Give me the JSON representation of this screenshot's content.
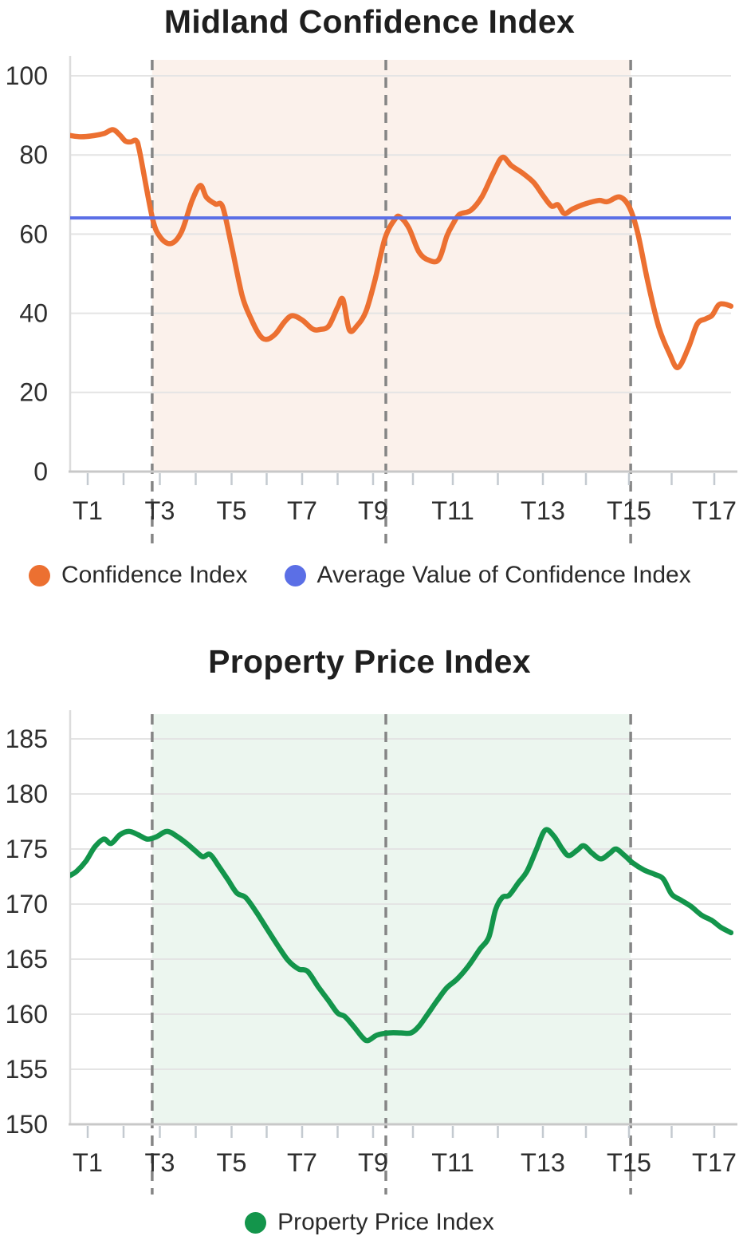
{
  "chart_data": [
    {
      "type": "line",
      "title": "Midland Confidence Index",
      "xlabel": "",
      "ylabel": "",
      "ylim": [
        0,
        104
      ],
      "y_ticks": [
        0,
        20,
        40,
        60,
        80,
        100
      ],
      "x_range": [
        0.51,
        17.39
      ],
      "x_ticks": {
        "labels": [
          "T1",
          "T3",
          "T5",
          "T7",
          "T9",
          "T11",
          "T13",
          "T15",
          "T17"
        ],
        "positions": [
          1,
          3,
          5,
          7,
          9,
          11,
          13,
          15,
          17
        ]
      },
      "grid": "horizontal",
      "legend_position": "bottom",
      "dashed_vlines_x": [
        2.79,
        9.32,
        15.04
      ],
      "shaded_region": {
        "from": 2.79,
        "to": 15.04,
        "color": "#FBF1EB"
      },
      "series": [
        {
          "name": "Confidence Index",
          "color": "#EC7031",
          "kind": "spline",
          "points": [
            [
              0.51,
              84.9
            ],
            [
              0.8,
              84.6
            ],
            [
              1.1,
              84.8
            ],
            [
              1.45,
              85.4
            ],
            [
              1.7,
              86.4
            ],
            [
              1.9,
              85.0
            ],
            [
              2.05,
              83.5
            ],
            [
              2.2,
              83.3
            ],
            [
              2.35,
              83.6
            ],
            [
              2.45,
              80.5
            ],
            [
              2.79,
              64.3
            ],
            [
              3.0,
              59.4
            ],
            [
              3.3,
              57.6
            ],
            [
              3.6,
              60.5
            ],
            [
              3.9,
              68.5
            ],
            [
              4.13,
              72.3
            ],
            [
              4.3,
              69.3
            ],
            [
              4.55,
              67.6
            ],
            [
              4.75,
              66.9
            ],
            [
              5.0,
              57.0
            ],
            [
              5.3,
              44.5
            ],
            [
              5.55,
              38.7
            ],
            [
              5.8,
              34.5
            ],
            [
              6.0,
              33.4
            ],
            [
              6.25,
              34.8
            ],
            [
              6.5,
              37.8
            ],
            [
              6.72,
              39.4
            ],
            [
              7.0,
              38.3
            ],
            [
              7.3,
              36.0
            ],
            [
              7.5,
              35.9
            ],
            [
              7.75,
              36.8
            ],
            [
              8.0,
              41.5
            ],
            [
              8.15,
              43.5
            ],
            [
              8.33,
              35.8
            ],
            [
              8.55,
              36.9
            ],
            [
              8.8,
              40.5
            ],
            [
              9.05,
              48.5
            ],
            [
              9.3,
              59.0
            ],
            [
              9.55,
              63.8
            ],
            [
              9.68,
              64.3
            ],
            [
              9.9,
              61.5
            ],
            [
              10.15,
              55.5
            ],
            [
              10.4,
              53.4
            ],
            [
              10.65,
              53.6
            ],
            [
              10.85,
              59.5
            ],
            [
              11.0,
              62.5
            ],
            [
              11.15,
              65.0
            ],
            [
              11.4,
              66.0
            ],
            [
              11.65,
              69.5
            ],
            [
              11.9,
              75.5
            ],
            [
              12.1,
              79.4
            ],
            [
              12.3,
              77.3
            ],
            [
              12.55,
              75.4
            ],
            [
              12.8,
              73.0
            ],
            [
              13.0,
              69.8
            ],
            [
              13.2,
              67.1
            ],
            [
              13.35,
              67.4
            ],
            [
              13.5,
              65.2
            ],
            [
              13.7,
              66.4
            ],
            [
              14.0,
              67.7
            ],
            [
              14.3,
              68.5
            ],
            [
              14.5,
              68.2
            ],
            [
              14.78,
              69.4
            ],
            [
              15.0,
              67.0
            ],
            [
              15.2,
              60.5
            ],
            [
              15.45,
              47.5
            ],
            [
              15.7,
              36.5
            ],
            [
              15.95,
              29.8
            ],
            [
              16.15,
              26.3
            ],
            [
              16.4,
              31.5
            ],
            [
              16.6,
              37.3
            ],
            [
              16.8,
              38.6
            ],
            [
              16.95,
              39.5
            ],
            [
              17.1,
              42.1
            ],
            [
              17.25,
              42.3
            ],
            [
              17.39,
              41.8
            ]
          ]
        },
        {
          "name": "Average Value of Confidence Index",
          "color": "#5B6FE6",
          "kind": "average-line",
          "value": 64.1
        }
      ]
    },
    {
      "type": "line",
      "title": "Property Price Index",
      "xlabel": "",
      "ylabel": "",
      "ylim": [
        150,
        186.5
      ],
      "y_ticks": [
        150,
        155,
        160,
        165,
        170,
        175,
        180,
        185
      ],
      "x_range": [
        0.51,
        17.39
      ],
      "x_ticks": {
        "labels": [
          "T1",
          "T3",
          "T5",
          "T7",
          "T9",
          "T11",
          "T13",
          "T15",
          "T17"
        ],
        "positions": [
          1,
          3,
          5,
          7,
          9,
          11,
          13,
          15,
          17
        ]
      },
      "grid": "horizontal",
      "legend_position": "bottom",
      "dashed_vlines_x": [
        2.79,
        9.32,
        15.04
      ],
      "shaded_region": {
        "from": 2.79,
        "to": 15.04,
        "color": "#ECF6EF"
      },
      "series": [
        {
          "name": "Property Price Index",
          "color": "#13954B",
          "kind": "spline",
          "points": [
            [
              0.51,
              172.6
            ],
            [
              0.7,
              173.0
            ],
            [
              0.95,
              173.9
            ],
            [
              1.2,
              175.2
            ],
            [
              1.45,
              175.9
            ],
            [
              1.65,
              175.5
            ],
            [
              1.9,
              176.3
            ],
            [
              2.15,
              176.6
            ],
            [
              2.4,
              176.3
            ],
            [
              2.65,
              175.9
            ],
            [
              2.9,
              176.1
            ],
            [
              3.2,
              176.6
            ],
            [
              3.5,
              176.1
            ],
            [
              3.75,
              175.5
            ],
            [
              4.0,
              174.8
            ],
            [
              4.2,
              174.3
            ],
            [
              4.4,
              174.5
            ],
            [
              4.65,
              173.4
            ],
            [
              4.9,
              172.2
            ],
            [
              5.15,
              171.0
            ],
            [
              5.4,
              170.6
            ],
            [
              5.7,
              169.3
            ],
            [
              6.0,
              167.8
            ],
            [
              6.3,
              166.3
            ],
            [
              6.6,
              164.9
            ],
            [
              6.9,
              164.1
            ],
            [
              7.15,
              163.9
            ],
            [
              7.45,
              162.5
            ],
            [
              7.75,
              161.2
            ],
            [
              8.0,
              160.1
            ],
            [
              8.2,
              159.8
            ],
            [
              8.45,
              158.9
            ],
            [
              8.7,
              157.9
            ],
            [
              8.85,
              157.6
            ],
            [
              9.1,
              158.1
            ],
            [
              9.4,
              158.3
            ],
            [
              9.7,
              158.3
            ],
            [
              9.95,
              158.3
            ],
            [
              10.15,
              158.9
            ],
            [
              10.35,
              159.9
            ],
            [
              10.6,
              161.2
            ],
            [
              10.85,
              162.4
            ],
            [
              11.1,
              163.2
            ],
            [
              11.35,
              164.4
            ],
            [
              11.6,
              165.9
            ],
            [
              11.8,
              167.0
            ],
            [
              11.95,
              169.5
            ],
            [
              12.1,
              170.6
            ],
            [
              12.25,
              170.8
            ],
            [
              12.45,
              171.9
            ],
            [
              12.65,
              173.0
            ],
            [
              12.85,
              174.9
            ],
            [
              13.05,
              176.7
            ],
            [
              13.25,
              176.2
            ],
            [
              13.45,
              175.0
            ],
            [
              13.6,
              174.4
            ],
            [
              13.8,
              174.9
            ],
            [
              13.95,
              175.3
            ],
            [
              14.15,
              174.6
            ],
            [
              14.35,
              174.1
            ],
            [
              14.55,
              174.6
            ],
            [
              14.7,
              175.0
            ],
            [
              14.9,
              174.4
            ],
            [
              15.1,
              173.7
            ],
            [
              15.35,
              173.1
            ],
            [
              15.6,
              172.7
            ],
            [
              15.8,
              172.3
            ],
            [
              16.0,
              170.9
            ],
            [
              16.2,
              170.4
            ],
            [
              16.45,
              169.8
            ],
            [
              16.7,
              169.0
            ],
            [
              16.95,
              168.5
            ],
            [
              17.15,
              167.9
            ],
            [
              17.39,
              167.4
            ]
          ]
        }
      ]
    }
  ],
  "style": {
    "grid_color": "#E4E4E4",
    "axis_color": "#C8C8C8",
    "tick_color": "#C4CAD0",
    "y_axis_line_color": "#DCDCDC",
    "dash_color": "#858585",
    "label_color": "#2f2f2f"
  }
}
